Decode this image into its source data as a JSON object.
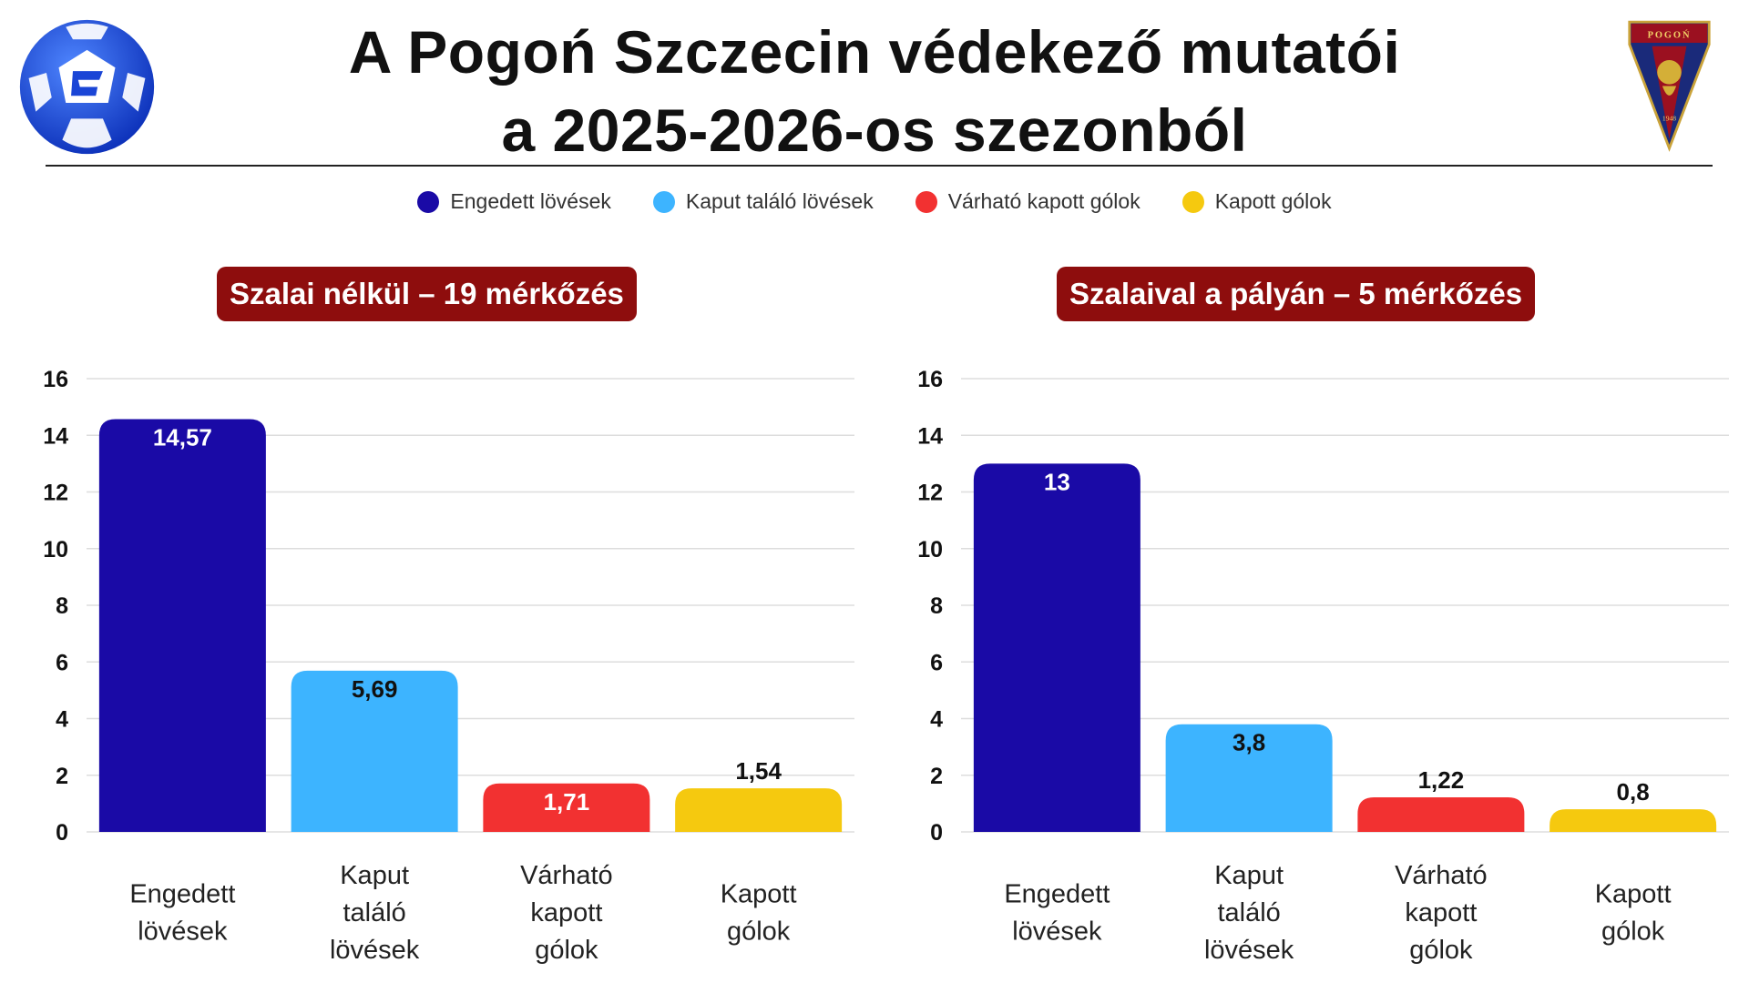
{
  "header": {
    "title_line1": "A Pogoń Szczecin védekező mutatói",
    "title_line2": "a 2025-2026-os szezonból"
  },
  "logos": {
    "league": "ekstraklasa-ball-logo",
    "club": "pogon-szczecin-crest",
    "club_lettering": "POGOŃ",
    "club_year": "1948"
  },
  "legend": [
    {
      "label": "Engedett lövések",
      "color": "#1a0aa6"
    },
    {
      "label": "Kaput találó lövések",
      "color": "#3db4ff"
    },
    {
      "label": "Várható kapott gólok",
      "color": "#f23131"
    },
    {
      "label": "Kapott gólok",
      "color": "#f5c90f"
    }
  ],
  "colors": {
    "badge": "#8e0d0d",
    "grid": "#dddddd"
  },
  "chart_data": [
    {
      "type": "bar",
      "title": "Szalai nélkül – 19 mérkőzés",
      "categories": [
        "Engedett lövések",
        "Kaput találó lövések",
        "Várható kapott gólok",
        "Kapott gólok"
      ],
      "values": [
        14.57,
        5.69,
        1.71,
        1.54
      ],
      "value_labels": [
        "14,57",
        "5,69",
        "1,71",
        "1,54"
      ],
      "colors": [
        "#1a0aa6",
        "#3db4ff",
        "#f23131",
        "#f5c90f"
      ],
      "ylim": [
        0,
        16
      ],
      "yticks": [
        0,
        2,
        4,
        6,
        8,
        10,
        12,
        14,
        16
      ],
      "grid": true,
      "legend": "top-center"
    },
    {
      "type": "bar",
      "title": "Szalaival a pályán – 5 mérkőzés",
      "categories": [
        "Engedett lövések",
        "Kaput találó lövések",
        "Várható kapott gólok",
        "Kapott gólok"
      ],
      "values": [
        13,
        3.8,
        1.22,
        0.8
      ],
      "value_labels": [
        "13",
        "3,8",
        "1,22",
        "0,8"
      ],
      "colors": [
        "#1a0aa6",
        "#3db4ff",
        "#f23131",
        "#f5c90f"
      ],
      "ylim": [
        0,
        16
      ],
      "yticks": [
        0,
        2,
        4,
        6,
        8,
        10,
        12,
        14,
        16
      ],
      "grid": true,
      "legend": "top-center"
    }
  ]
}
